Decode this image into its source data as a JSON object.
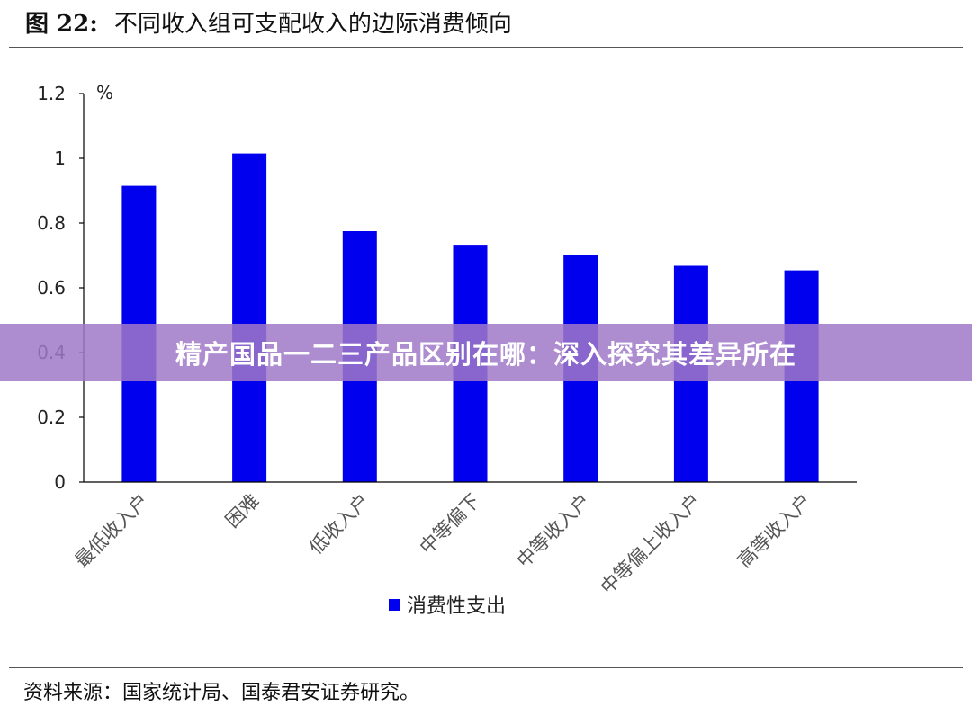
{
  "figure": {
    "title_number": "图 22:",
    "title_text": "不同收入组可支配收入的边际消费倾向"
  },
  "banner": {
    "text": "精产国品一二三产品区别在哪：深入探究其差异所在"
  },
  "source": {
    "text": "资料来源：国家统计局、国泰君安证券研究。"
  },
  "colors": {
    "bar": "#0000ee",
    "axis": "#000000",
    "tick_text": "#222222"
  },
  "chart_data": {
    "type": "bar",
    "unit_label": "%",
    "categories": [
      "最低收入户",
      "困难",
      "低收入户",
      "中等偏下",
      "中等收入户",
      "中等偏上收入户",
      "高等收入户"
    ],
    "series": [
      {
        "name": "消费性支出",
        "values": [
          0.915,
          1.015,
          0.775,
          0.733,
          0.7,
          0.668,
          0.654
        ]
      }
    ],
    "ylim": [
      0,
      1.2
    ],
    "yticks": [
      0,
      0.2,
      0.4,
      0.6,
      0.8,
      1,
      1.2
    ],
    "ytick_labels": [
      "0",
      "0.2",
      "0.4",
      "0.6",
      "0.8",
      "1",
      "1.2"
    ],
    "grid": false,
    "legend_position": "bottom"
  }
}
